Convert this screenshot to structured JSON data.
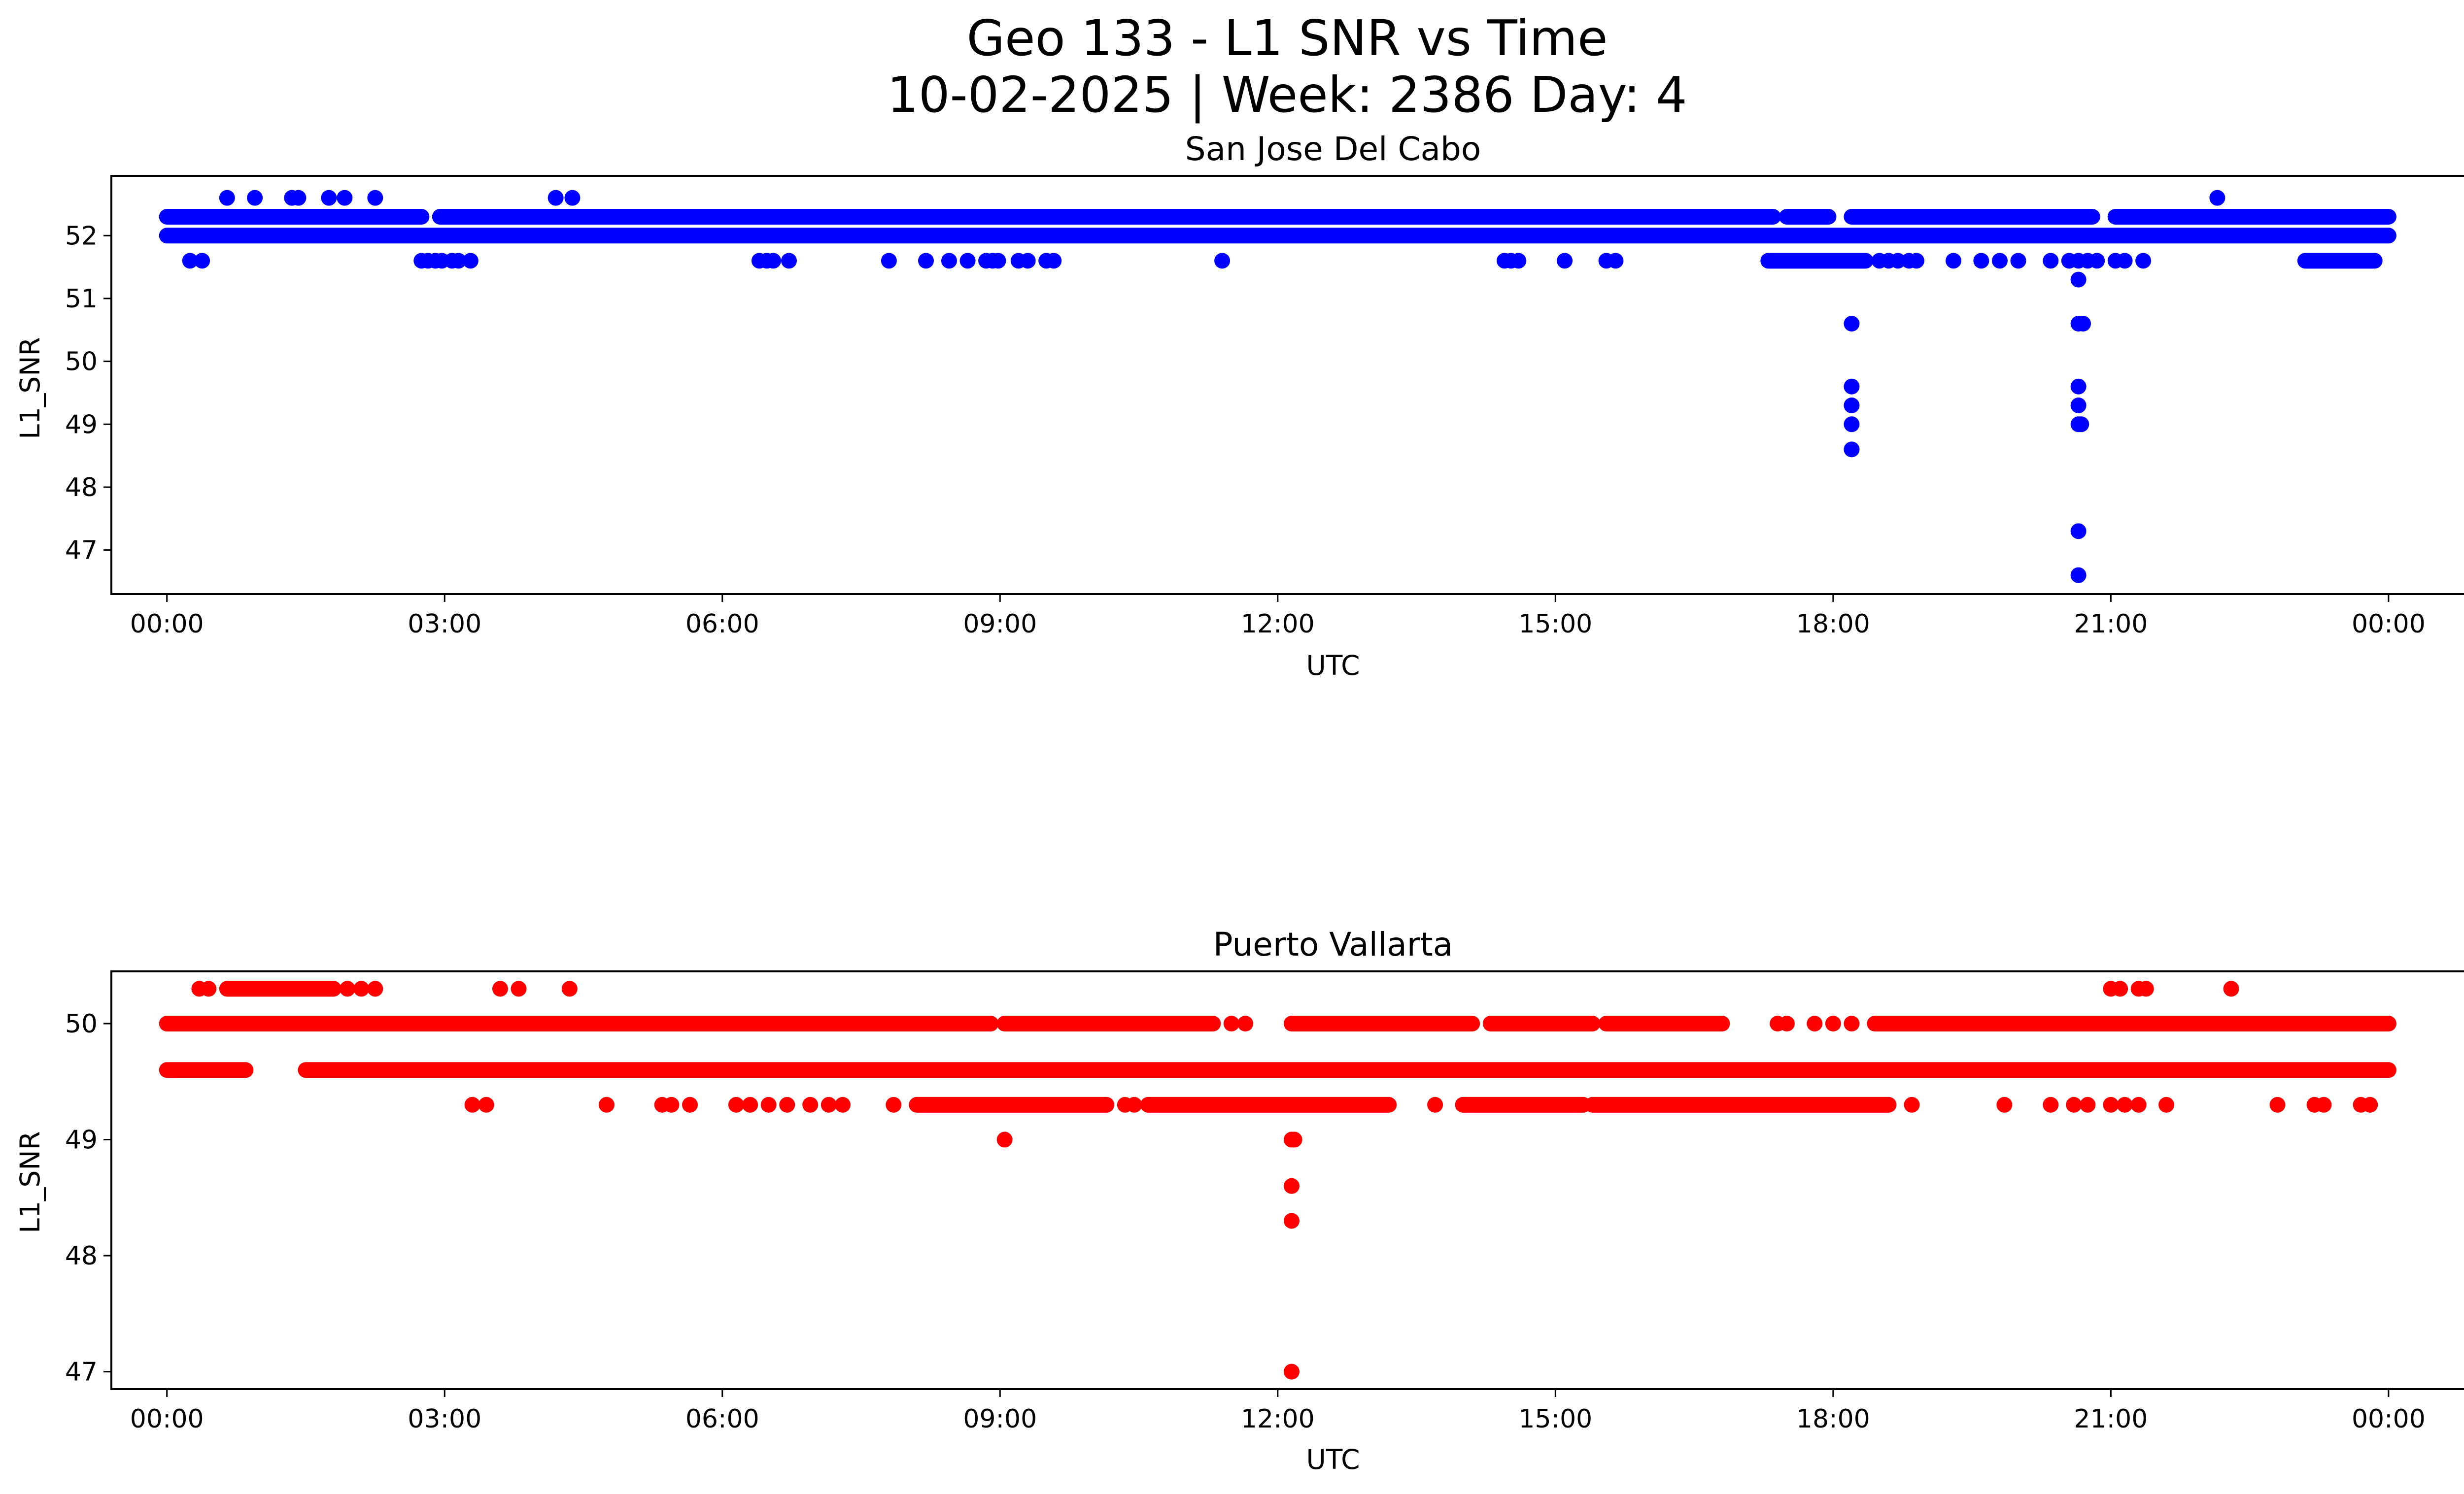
{
  "figure": {
    "title_line1": "Geo 133 - L1 SNR vs Time",
    "title_line2": "10-02-2025 | Week: 2386 Day: 4"
  },
  "chart_data": [
    {
      "type": "scatter",
      "title": "San Jose Del Cabo",
      "xlabel": "UTC",
      "ylabel": "L1_SNR",
      "color": "#0000ff",
      "x_units": "hours (UTC)",
      "xlim": [
        -0.6,
        25.8
      ],
      "ylim": [
        46.3,
        52.95
      ],
      "xtick_values": [
        0,
        3,
        6,
        9,
        12,
        15,
        18,
        21,
        24
      ],
      "xtick_labels": [
        "00:00",
        "03:00",
        "06:00",
        "09:00",
        "12:00",
        "15:00",
        "18:00",
        "21:00",
        "00:00"
      ],
      "yticks": [
        47,
        48,
        49,
        50,
        51,
        52
      ],
      "bands": [
        {
          "y": 52.3,
          "segments": [
            [
              0,
              2.75
            ],
            [
              2.95,
              17.35
            ],
            [
              17.5,
              17.95
            ],
            [
              18.2,
              20.8
            ],
            [
              21.05,
              24
            ]
          ]
        },
        {
          "y": 52.0,
          "segments": [
            [
              0,
              24
            ]
          ]
        },
        {
          "y": 51.6,
          "segments": [
            [
              17.3,
              18.35
            ],
            [
              23.1,
              23.85
            ]
          ]
        }
      ],
      "points": [
        [
          0.65,
          52.6
        ],
        [
          0.95,
          52.6
        ],
        [
          1.35,
          52.6
        ],
        [
          1.42,
          52.6
        ],
        [
          1.75,
          52.6
        ],
        [
          1.92,
          52.6
        ],
        [
          2.25,
          52.6
        ],
        [
          4.2,
          52.6
        ],
        [
          4.38,
          52.6
        ],
        [
          22.15,
          52.6
        ],
        [
          0.25,
          51.6
        ],
        [
          0.38,
          51.6
        ],
        [
          2.75,
          51.6
        ],
        [
          2.82,
          51.6
        ],
        [
          2.9,
          51.6
        ],
        [
          2.97,
          51.6
        ],
        [
          3.08,
          51.6
        ],
        [
          3.15,
          51.6
        ],
        [
          3.28,
          51.6
        ],
        [
          6.4,
          51.6
        ],
        [
          6.48,
          51.6
        ],
        [
          6.55,
          51.6
        ],
        [
          6.72,
          51.6
        ],
        [
          7.8,
          51.6
        ],
        [
          8.2,
          51.6
        ],
        [
          8.45,
          51.6
        ],
        [
          8.65,
          51.6
        ],
        [
          8.85,
          51.6
        ],
        [
          8.92,
          51.6
        ],
        [
          8.98,
          51.6
        ],
        [
          9.2,
          51.6
        ],
        [
          9.3,
          51.6
        ],
        [
          9.5,
          51.6
        ],
        [
          9.58,
          51.6
        ],
        [
          11.4,
          51.6
        ],
        [
          14.45,
          51.6
        ],
        [
          14.52,
          51.6
        ],
        [
          14.6,
          51.6
        ],
        [
          15.1,
          51.6
        ],
        [
          15.55,
          51.6
        ],
        [
          15.65,
          51.6
        ],
        [
          18.5,
          51.6
        ],
        [
          18.6,
          51.6
        ],
        [
          18.7,
          51.6
        ],
        [
          18.82,
          51.6
        ],
        [
          18.9,
          51.6
        ],
        [
          19.3,
          51.6
        ],
        [
          19.6,
          51.6
        ],
        [
          19.8,
          51.6
        ],
        [
          20.0,
          51.6
        ],
        [
          20.35,
          51.6
        ],
        [
          20.55,
          51.6
        ],
        [
          20.65,
          51.6
        ],
        [
          20.75,
          51.6
        ],
        [
          20.85,
          51.6
        ],
        [
          21.05,
          51.6
        ],
        [
          21.15,
          51.6
        ],
        [
          21.35,
          51.6
        ],
        [
          18.2,
          50.6
        ],
        [
          18.2,
          49.6
        ],
        [
          18.2,
          49.3
        ],
        [
          18.2,
          49.0
        ],
        [
          18.2,
          48.6
        ],
        [
          20.65,
          51.3
        ],
        [
          20.65,
          50.6
        ],
        [
          20.7,
          50.6
        ],
        [
          20.65,
          49.6
        ],
        [
          20.65,
          49.3
        ],
        [
          20.65,
          49.0
        ],
        [
          20.68,
          49.0
        ],
        [
          20.65,
          47.3
        ],
        [
          20.65,
          46.6
        ]
      ]
    },
    {
      "type": "scatter",
      "title": "Puerto Vallarta",
      "xlabel": "UTC",
      "ylabel": "L1_SNR",
      "color": "#ff0000",
      "x_units": "hours (UTC)",
      "xlim": [
        -0.6,
        25.8
      ],
      "ylim": [
        46.85,
        50.45
      ],
      "xtick_values": [
        0,
        3,
        6,
        9,
        12,
        15,
        18,
        21,
        24
      ],
      "xtick_labels": [
        "00:00",
        "03:00",
        "06:00",
        "09:00",
        "12:00",
        "15:00",
        "18:00",
        "21:00",
        "00:00"
      ],
      "yticks": [
        47,
        48,
        49,
        50
      ],
      "bands": [
        {
          "y": 50.0,
          "segments": [
            [
              0,
              8.9
            ],
            [
              9.05,
              11.3
            ],
            [
              12.15,
              14.1
            ],
            [
              14.3,
              15.4
            ],
            [
              15.55,
              16.8
            ],
            [
              18.45,
              24
            ]
          ]
        },
        {
          "y": 49.6,
          "segments": [
            [
              0,
              0.85
            ],
            [
              1.5,
              24
            ]
          ]
        },
        {
          "y": 49.3,
          "segments": [
            [
              8.1,
              10.15
            ],
            [
              10.6,
              13.2
            ],
            [
              14.0,
              15.3
            ],
            [
              15.4,
              18.6
            ]
          ]
        },
        {
          "y": 50.3,
          "segments": [
            [
              0.65,
              1.8
            ]
          ]
        }
      ],
      "points": [
        [
          0.35,
          50.3
        ],
        [
          0.45,
          50.3
        ],
        [
          1.95,
          50.3
        ],
        [
          2.1,
          50.3
        ],
        [
          2.25,
          50.3
        ],
        [
          3.6,
          50.3
        ],
        [
          3.8,
          50.3
        ],
        [
          4.35,
          50.3
        ],
        [
          21.0,
          50.3
        ],
        [
          21.1,
          50.3
        ],
        [
          21.3,
          50.3
        ],
        [
          21.38,
          50.3
        ],
        [
          22.3,
          50.3
        ],
        [
          9.3,
          50.0
        ],
        [
          9.5,
          50.0
        ],
        [
          11.5,
          50.0
        ],
        [
          11.65,
          50.0
        ],
        [
          17.4,
          50.0
        ],
        [
          17.5,
          50.0
        ],
        [
          17.8,
          50.0
        ],
        [
          18.0,
          50.0
        ],
        [
          18.2,
          50.0
        ],
        [
          3.3,
          49.3
        ],
        [
          3.45,
          49.3
        ],
        [
          4.75,
          49.3
        ],
        [
          5.35,
          49.3
        ],
        [
          5.45,
          49.3
        ],
        [
          5.65,
          49.3
        ],
        [
          6.15,
          49.3
        ],
        [
          6.3,
          49.3
        ],
        [
          6.5,
          49.3
        ],
        [
          6.7,
          49.3
        ],
        [
          6.95,
          49.3
        ],
        [
          7.15,
          49.3
        ],
        [
          7.3,
          49.3
        ],
        [
          7.85,
          49.3
        ],
        [
          10.35,
          49.3
        ],
        [
          10.45,
          49.3
        ],
        [
          13.7,
          49.3
        ],
        [
          18.85,
          49.3
        ],
        [
          19.85,
          49.3
        ],
        [
          20.35,
          49.3
        ],
        [
          20.6,
          49.3
        ],
        [
          20.75,
          49.3
        ],
        [
          21.0,
          49.3
        ],
        [
          21.15,
          49.3
        ],
        [
          21.3,
          49.3
        ],
        [
          21.6,
          49.3
        ],
        [
          22.8,
          49.3
        ],
        [
          23.2,
          49.3
        ],
        [
          23.3,
          49.3
        ],
        [
          23.7,
          49.3
        ],
        [
          23.8,
          49.3
        ],
        [
          9.05,
          49.0
        ],
        [
          12.15,
          49.0
        ],
        [
          12.18,
          49.0
        ],
        [
          12.15,
          48.6
        ],
        [
          12.15,
          48.3
        ],
        [
          12.15,
          47.0
        ]
      ]
    }
  ]
}
